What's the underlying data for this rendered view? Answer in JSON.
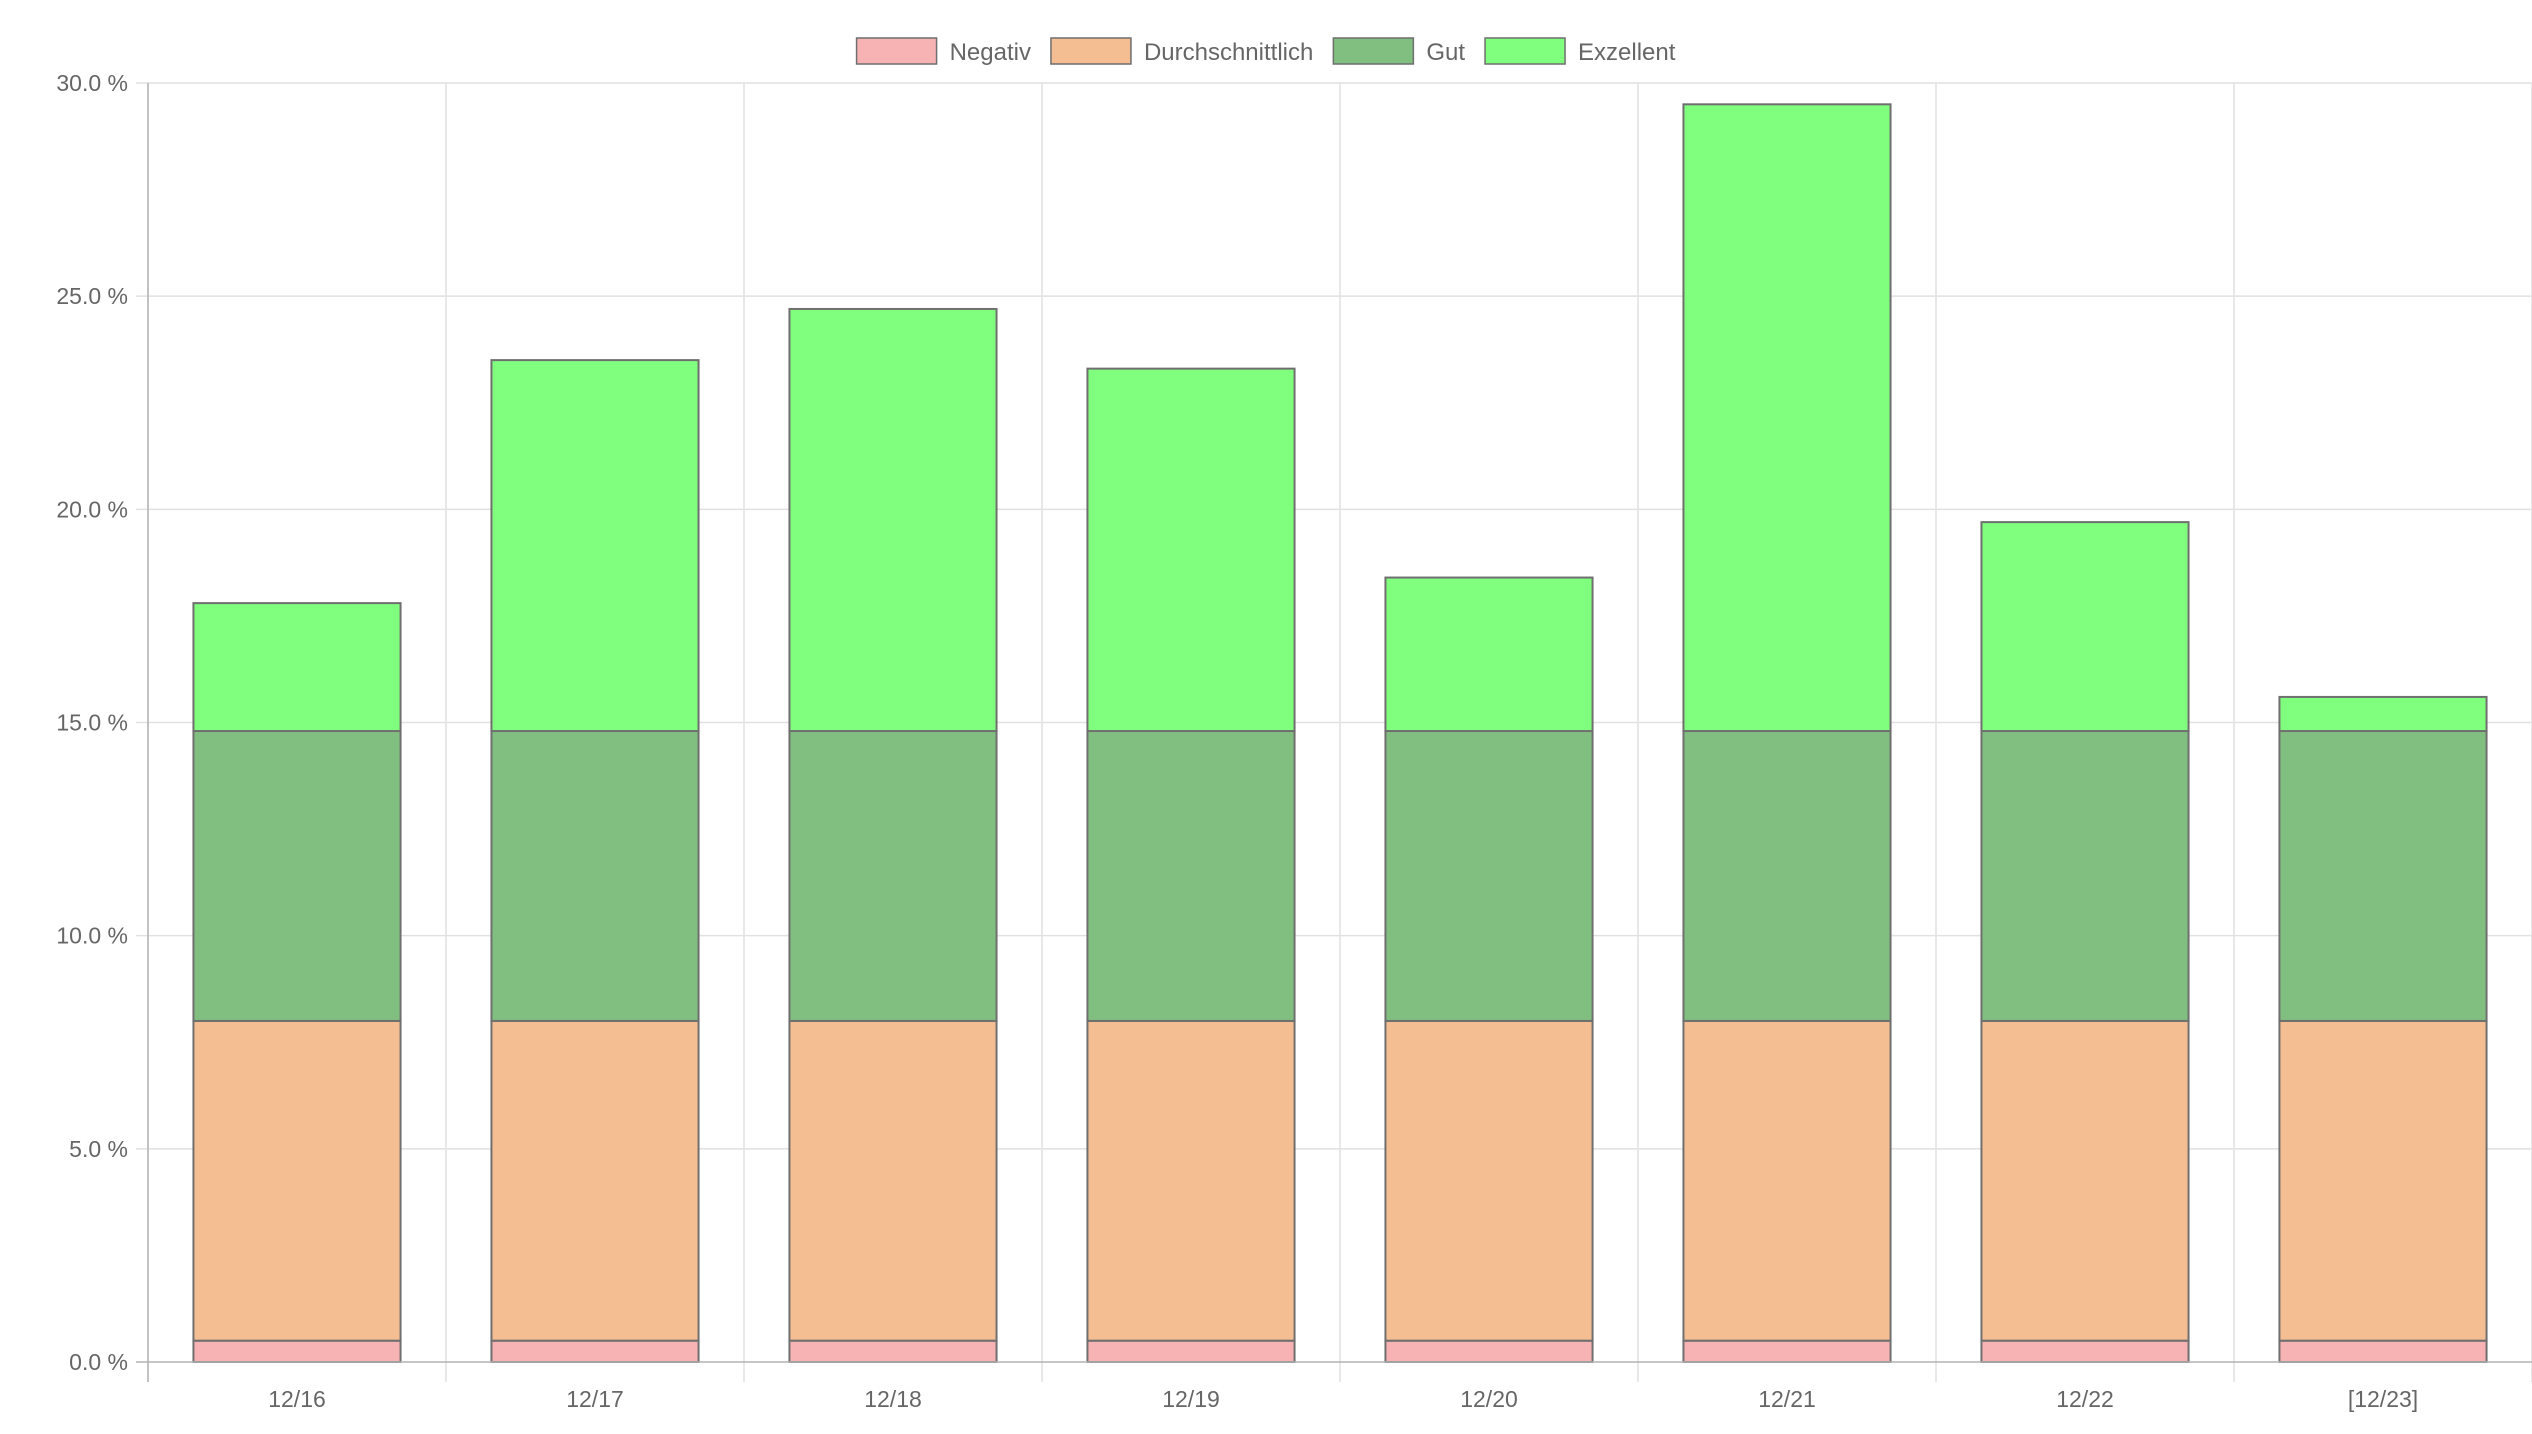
{
  "chart_data": {
    "type": "bar",
    "stacked": true,
    "categories": [
      "12/16",
      "12/17",
      "12/18",
      "12/19",
      "12/20",
      "12/21",
      "12/22",
      "[12/23]"
    ],
    "series": [
      {
        "name": "Negativ",
        "color": "#f7b3b4",
        "values": [
          0.5,
          0.5,
          0.5,
          0.5,
          0.5,
          0.5,
          0.5,
          0.5
        ]
      },
      {
        "name": "Durchschnittlich",
        "color": "#f5bd92",
        "values": [
          7.5,
          7.5,
          7.5,
          7.5,
          7.5,
          7.5,
          7.5,
          7.5
        ]
      },
      {
        "name": "Gut",
        "color": "#80bf80",
        "values": [
          6.8,
          6.8,
          6.8,
          6.8,
          6.8,
          6.8,
          6.8,
          6.8
        ]
      },
      {
        "name": "Exzellent",
        "color": "#80ff7e",
        "values": [
          3.0,
          8.7,
          9.9,
          8.5,
          3.6,
          14.7,
          4.9,
          0.8
        ]
      }
    ],
    "ylim": [
      0,
      30
    ],
    "yticks": [
      0,
      5,
      10,
      15,
      20,
      25,
      30
    ],
    "ytick_format": "0.0 %",
    "ytick_labels": [
      "0.0 %",
      "5.0 %",
      "10.0 %",
      "15.0 %",
      "20.0 %",
      "25.0 %",
      "30.0 %"
    ],
    "grid": true,
    "legend_position": "top-center",
    "title": "",
    "xlabel": "",
    "ylabel": ""
  }
}
